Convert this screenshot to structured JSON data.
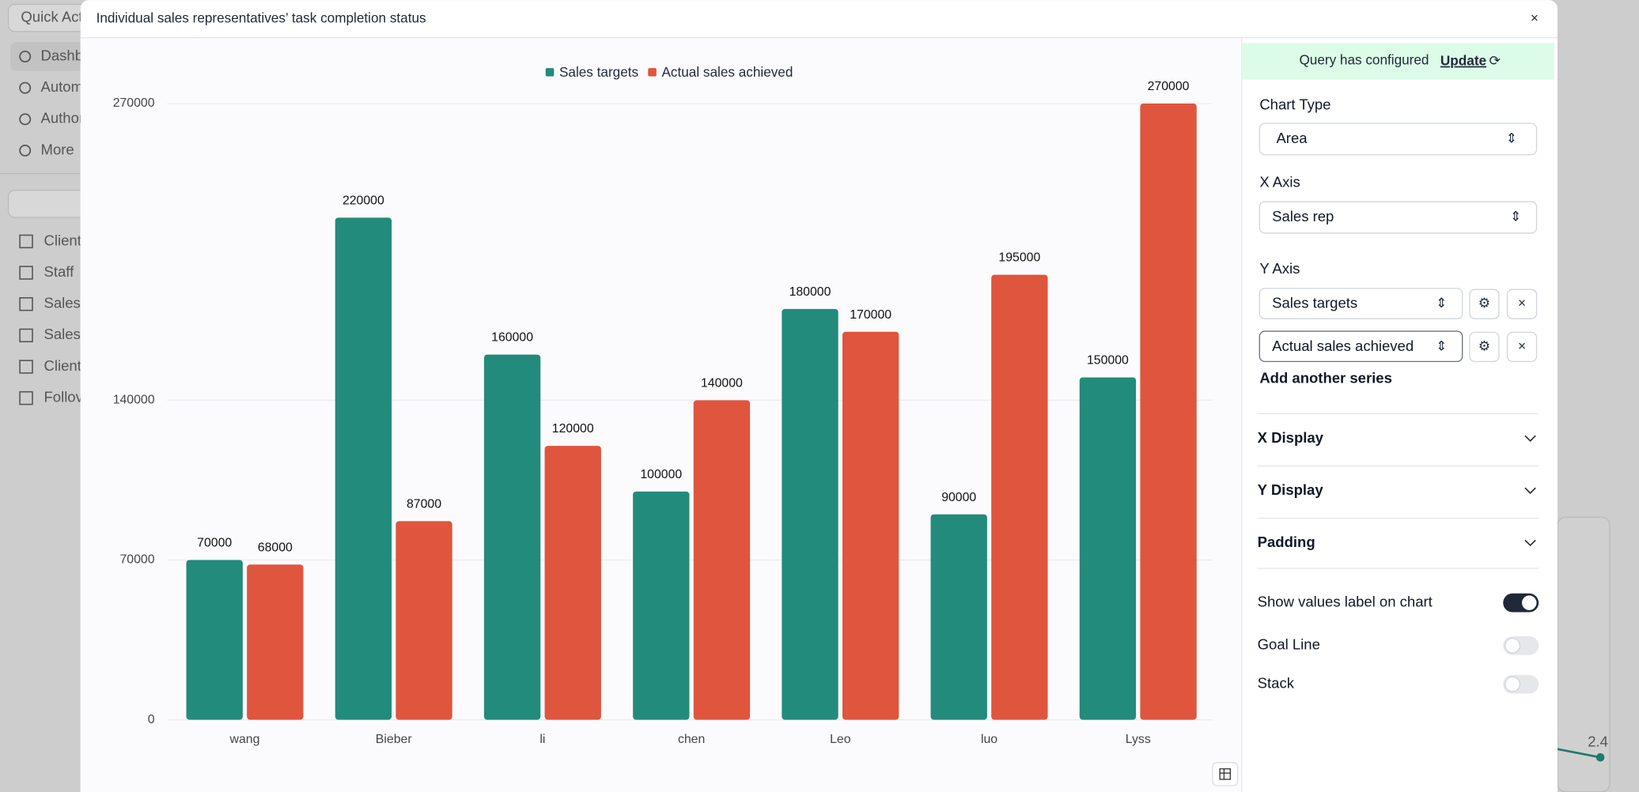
{
  "background": {
    "search": "Quick Act",
    "nav": [
      "Dashb",
      "Autom",
      "Author",
      "More"
    ],
    "tables": [
      "Client",
      "Staff",
      "Sales",
      "Sales",
      "Client",
      "Follov"
    ],
    "annotation": "2.4"
  },
  "modal": {
    "title": "Individual sales representatives’ task completion status"
  },
  "chart_data": {
    "type": "bar",
    "categories": [
      "wang",
      "Bieber",
      "li",
      "chen",
      "Leo",
      "luo",
      "Lyss"
    ],
    "series": [
      {
        "name": "Sales targets",
        "color": "#238b7b",
        "values": [
          70000,
          220000,
          160000,
          100000,
          180000,
          90000,
          150000
        ]
      },
      {
        "name": "Actual sales achieved",
        "color": "#e0553d",
        "values": [
          68000,
          87000,
          120000,
          140000,
          170000,
          195000,
          270000
        ]
      }
    ],
    "ylim": [
      0,
      270000
    ],
    "yticks": [
      0,
      70000,
      140000,
      270000
    ],
    "grid": true,
    "show_values": true,
    "legend": "top"
  },
  "panel": {
    "banner": "Query has configured",
    "update": "Update",
    "chart_type_label": "Chart Type",
    "chart_type": "Area",
    "x_axis_label": "X Axis",
    "x_axis": "Sales rep",
    "y_axis_label": "Y Axis",
    "y_series": [
      "Sales targets",
      "Actual sales achieved"
    ],
    "add_series": "Add another series",
    "sections": [
      "X Display",
      "Y Display",
      "Padding"
    ],
    "toggles": [
      {
        "label": "Show values label on chart",
        "on": true
      },
      {
        "label": "Goal Line",
        "on": false
      },
      {
        "label": "Stack",
        "on": false
      }
    ]
  }
}
